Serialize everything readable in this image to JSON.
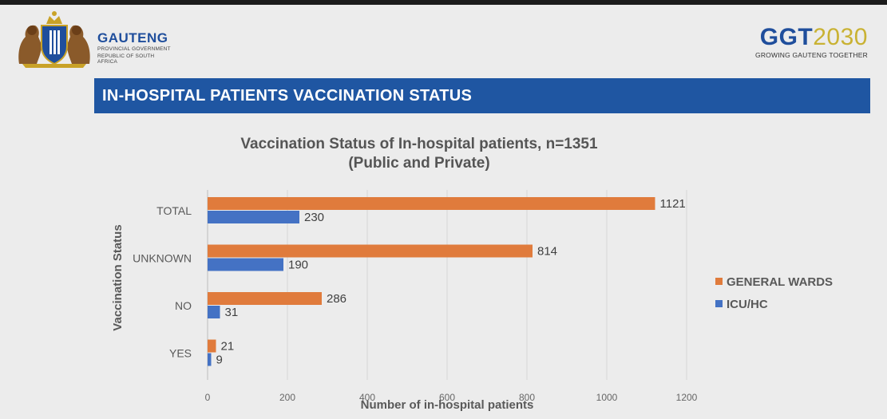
{
  "header": {
    "org_name": "GAUTENG",
    "org_sub1": "PROVINCIAL GOVERNMENT",
    "org_sub2": "REPUBLIC OF SOUTH AFRICA",
    "ggt_prefix": "GGT",
    "ggt_suffix": "2030",
    "ggt_tagline": "GROWING GAUTENG TOGETHER"
  },
  "slide": {
    "banner_title": "IN-HOSPITAL PATIENTS VACCINATION STATUS"
  },
  "colors": {
    "banner": "#1f56a2",
    "general_wards": "#e07b3c",
    "icu_hc": "#4472c4"
  },
  "chart_data": {
    "type": "bar",
    "orientation": "horizontal",
    "title_line1": "Vaccination Status of In-hospital patients, n=1351",
    "title_line2": "(Public and Private)",
    "xlabel": "Number of in-hospital patients",
    "ylabel": "Vaccination Status",
    "categories": [
      "TOTAL",
      "UNKNOWN",
      "NO",
      "YES"
    ],
    "series": [
      {
        "name": "GENERAL WARDS",
        "values": [
          1121,
          814,
          286,
          21
        ],
        "color": "#e07b3c"
      },
      {
        "name": "ICU/HC",
        "values": [
          230,
          190,
          31,
          9
        ],
        "color": "#4472c4"
      }
    ],
    "xlim": [
      0,
      1200
    ],
    "xticks": [
      0,
      200,
      400,
      600,
      800,
      1000,
      1200
    ],
    "grid": "vertical",
    "legend": "right"
  }
}
